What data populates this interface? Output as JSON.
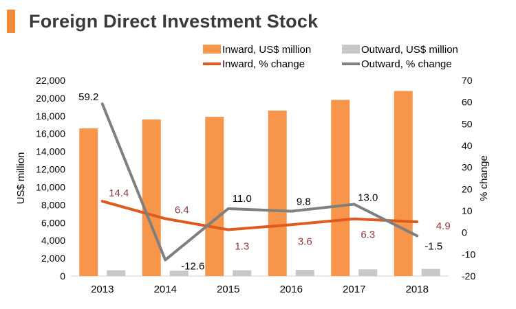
{
  "header": {
    "title": "Foreign Direct Investment Stock"
  },
  "chart_data": {
    "type": "bar+line",
    "title": "Foreign Direct Investment Stock",
    "categories": [
      "2013",
      "2014",
      "2015",
      "2016",
      "2017",
      "2018"
    ],
    "bar_series": [
      {
        "name": "Inward, US$ million",
        "color": "#F7954A",
        "values": [
          16600,
          17600,
          17900,
          18600,
          19800,
          20800
        ]
      },
      {
        "name": "Outward, US$ million",
        "color": "#C8C8C8",
        "values": [
          650,
          600,
          650,
          700,
          750,
          800
        ]
      }
    ],
    "line_series": [
      {
        "name": "Inward, % change",
        "color": "#E05A1E",
        "label_color": "#8B3A3A",
        "values": [
          14.4,
          6.4,
          1.3,
          3.6,
          6.3,
          4.9
        ],
        "labels": [
          "14.4",
          "6.4",
          "1.3",
          "3.6",
          "6.3",
          "4.9"
        ]
      },
      {
        "name": "Outward, % change",
        "color": "#7F7F7F",
        "label_color": "#000000",
        "values": [
          59.2,
          -12.6,
          11.0,
          9.8,
          13.0,
          -1.5
        ],
        "labels": [
          "59.2",
          "-12.6",
          "11.0",
          "9.8",
          "13.0",
          "-1.5"
        ]
      }
    ],
    "y_left": {
      "label": "US$ million",
      "min": 0,
      "max": 22000,
      "step": 2000,
      "tick_labels": [
        "0",
        "2,000",
        "4,000",
        "6,000",
        "8,000",
        "10,000",
        "12,000",
        "14,000",
        "16,000",
        "18,000",
        "20,000",
        "22,000"
      ]
    },
    "y_right": {
      "label": "% change",
      "min": -20,
      "max": 70,
      "step": 10,
      "tick_labels": [
        "-20",
        "-10",
        "0",
        "10",
        "20",
        "30",
        "40",
        "50",
        "60",
        "70"
      ]
    },
    "legend_position": "top"
  }
}
